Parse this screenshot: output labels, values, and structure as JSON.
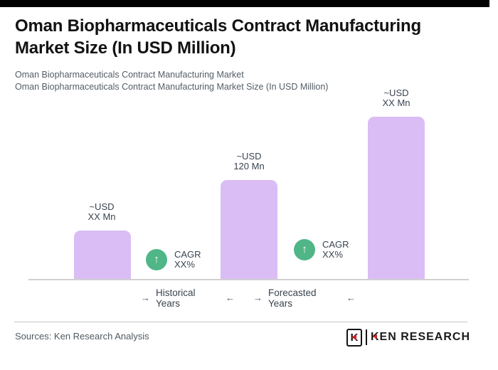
{
  "page": {
    "top_bar_color": "#000000"
  },
  "header": {
    "title_line1": "Oman Biopharmaceuticals Contract Manufacturing",
    "title_line2": "Market Size (In USD Million)",
    "subtitle_line1": "Oman Biopharmaceuticals Contract Manufacturing Market",
    "subtitle_line2": "Oman Biopharmaceuticals Contract Manufacturing Market Size (In USD Million)"
  },
  "chart_data": {
    "type": "bar",
    "title": "Oman Biopharmaceuticals Contract Manufacturing Market Size (In USD Million)",
    "unit": "USD Million",
    "bars": [
      {
        "label_line1": "~USD",
        "label_line2": "XX Mn",
        "value_usd_mn_estimated": 59
      },
      {
        "label_line1": "~USD",
        "label_line2": "120 Mn",
        "value_usd_mn_estimated": 120
      },
      {
        "label_line1": "~USD",
        "label_line2": "XX Mn",
        "value_usd_mn_estimated": 197
      }
    ],
    "cagr_badges": [
      {
        "line1": "CAGR",
        "line2": "XX%"
      },
      {
        "line1": "CAGR",
        "line2": "XX%"
      }
    ],
    "x_group_labels": {
      "historical": "Historical Years",
      "forecasted": "Forecasted Years"
    },
    "ylim": [
      0,
      210
    ],
    "grid": false,
    "legend": false,
    "bar_color": "#d9bdf4",
    "badge_color": "#50b687",
    "axis_line_color": "#d0d0d0"
  },
  "icons": {
    "up_arrow": "↑",
    "right_arrow": "→",
    "left_arrow": "←"
  },
  "footer": {
    "sources_text": "Sources: Ken Research Analysis",
    "logo": {
      "emblem_letter": "K",
      "wordmark": "KEN RESEARCH"
    }
  }
}
